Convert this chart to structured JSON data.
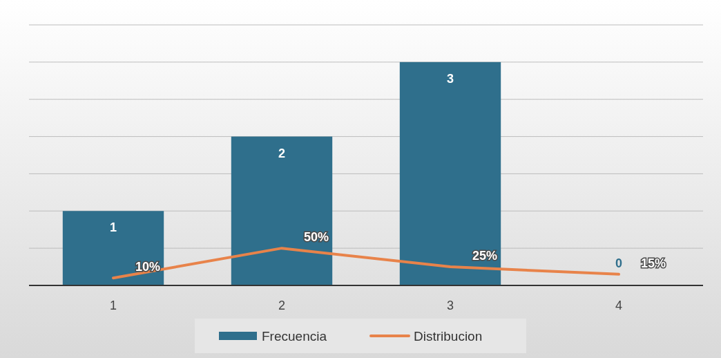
{
  "chart_data": {
    "type": "bar",
    "categories": [
      "1",
      "2",
      "3",
      "4"
    ],
    "series": [
      {
        "name": "Frecuencia",
        "color": "#2f6f8c",
        "values": [
          1,
          2,
          3,
          0
        ],
        "value_labels": [
          "1",
          "2",
          "3",
          "0"
        ]
      },
      {
        "name": "Distribucion",
        "type": "line",
        "color": "#e8834a",
        "values": [
          0.1,
          0.5,
          0.25,
          0.15
        ],
        "value_labels": [
          "10%",
          "50%",
          "25%",
          "15%"
        ]
      }
    ],
    "ylim": [
      0,
      3.5
    ],
    "yticks": [
      {
        "value": 0,
        "label": null
      },
      {
        "value": 0.5,
        "label": null
      },
      {
        "value": 1,
        "label": null
      },
      {
        "value": 1.5,
        "label": null
      },
      {
        "value": 2,
        "label": null
      },
      {
        "value": 2.5,
        "label": null
      },
      {
        "value": 3,
        "label": null
      },
      {
        "value": 3.5,
        "label": null
      }
    ],
    "tick_labels": "x",
    "grid": "y",
    "legend": "bottom",
    "marker": "none",
    "line_style": "solid"
  }
}
